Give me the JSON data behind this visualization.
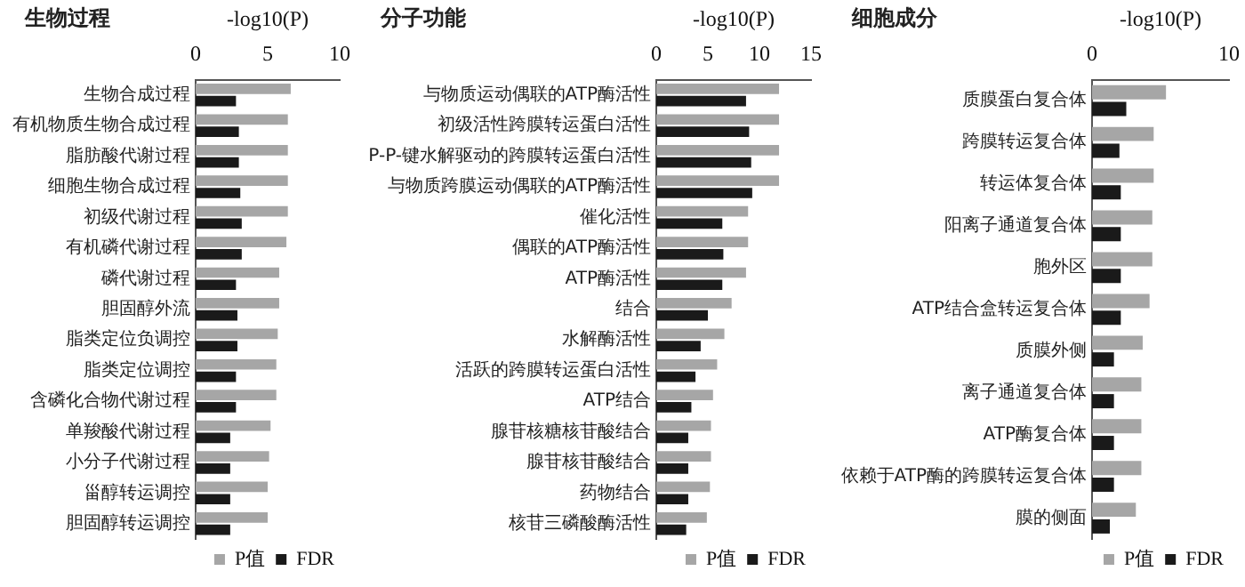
{
  "chart_data": [
    {
      "type": "bar",
      "orientation": "horizontal",
      "title": "生物过程",
      "xlabel": "-log10(P)",
      "xlim": [
        0,
        10
      ],
      "xticks": [
        0,
        5,
        10
      ],
      "grid": false,
      "legend": "bottom right",
      "categories": [
        "生物合成过程",
        "有机物质生物合成过程",
        "脂肪酸代谢过程",
        "细胞生物合成过程",
        "初级代谢过程",
        "有机磷代谢过程",
        "磷代谢过程",
        "胆固醇外流",
        "脂类定位负调控",
        "脂类定位调控",
        "含磷化合物代谢过程",
        "单羧酸代谢过程",
        "小分子代谢过程",
        "甾醇转运调控",
        "胆固醇转运调控"
      ],
      "series": [
        {
          "name": "P值",
          "color": "#a6a6a6",
          "values": [
            6.6,
            6.4,
            6.4,
            6.4,
            6.4,
            6.3,
            5.8,
            5.8,
            5.7,
            5.6,
            5.6,
            5.2,
            5.1,
            5.0,
            5.0
          ]
        },
        {
          "name": "FDR",
          "color": "#1a1a1a",
          "values": [
            2.8,
            3.0,
            3.0,
            3.1,
            3.2,
            3.2,
            2.8,
            2.9,
            2.9,
            2.8,
            2.8,
            2.4,
            2.4,
            2.4,
            2.4
          ]
        }
      ]
    },
    {
      "type": "bar",
      "orientation": "horizontal",
      "title": "分子功能",
      "xlabel": "-log10(P)",
      "xlim": [
        0,
        15
      ],
      "xticks": [
        0,
        5,
        10,
        15
      ],
      "grid": false,
      "legend": "bottom right",
      "categories": [
        "与物质运动偶联的ATP酶活性",
        "初级活性跨膜转运蛋白活性",
        "P-P-键水解驱动的跨膜转运蛋白活性",
        "与物质跨膜运动偶联的ATP酶活性",
        "催化活性",
        "偶联的ATP酶活性",
        "ATP酶活性",
        "结合",
        "水解酶活性",
        "活跃的跨膜转运蛋白活性",
        "ATP结合",
        "腺苷核糖核苷酸结合",
        "腺苷核苷酸结合",
        "药物结合",
        "核苷三磷酸酶活性"
      ],
      "series": [
        {
          "name": "P值",
          "color": "#a6a6a6",
          "values": [
            11.9,
            11.9,
            11.9,
            11.9,
            8.9,
            8.9,
            8.7,
            7.3,
            6.6,
            5.9,
            5.5,
            5.3,
            5.3,
            5.2,
            4.9
          ]
        },
        {
          "name": "FDR",
          "color": "#1a1a1a",
          "values": [
            8.7,
            9.0,
            9.2,
            9.3,
            6.4,
            6.5,
            6.4,
            5.0,
            4.3,
            3.8,
            3.4,
            3.1,
            3.1,
            3.1,
            2.9
          ]
        }
      ]
    },
    {
      "type": "bar",
      "orientation": "horizontal",
      "title": "细胞成分",
      "xlabel": "-log10(P)",
      "xlim": [
        0,
        10
      ],
      "xticks": [
        0,
        10
      ],
      "grid": false,
      "legend": "bottom right",
      "categories": [
        "质膜蛋白复合体",
        "跨膜转运复合体",
        "转运体复合体",
        "阳离子通道复合体",
        "胞外区",
        "ATP结合盒转运复合体",
        "质膜外侧",
        "离子通道复合体",
        "ATP酶复合体",
        "依赖于ATP酶的跨膜转运复合体",
        "膜的侧面"
      ],
      "series": [
        {
          "name": "P值",
          "color": "#a6a6a6",
          "values": [
            5.4,
            4.5,
            4.5,
            4.4,
            4.4,
            4.2,
            3.7,
            3.6,
            3.6,
            3.6,
            3.2
          ]
        },
        {
          "name": "FDR",
          "color": "#1a1a1a",
          "values": [
            2.5,
            2.0,
            2.1,
            2.1,
            2.1,
            2.1,
            1.6,
            1.6,
            1.6,
            1.6,
            1.3
          ]
        }
      ]
    }
  ]
}
